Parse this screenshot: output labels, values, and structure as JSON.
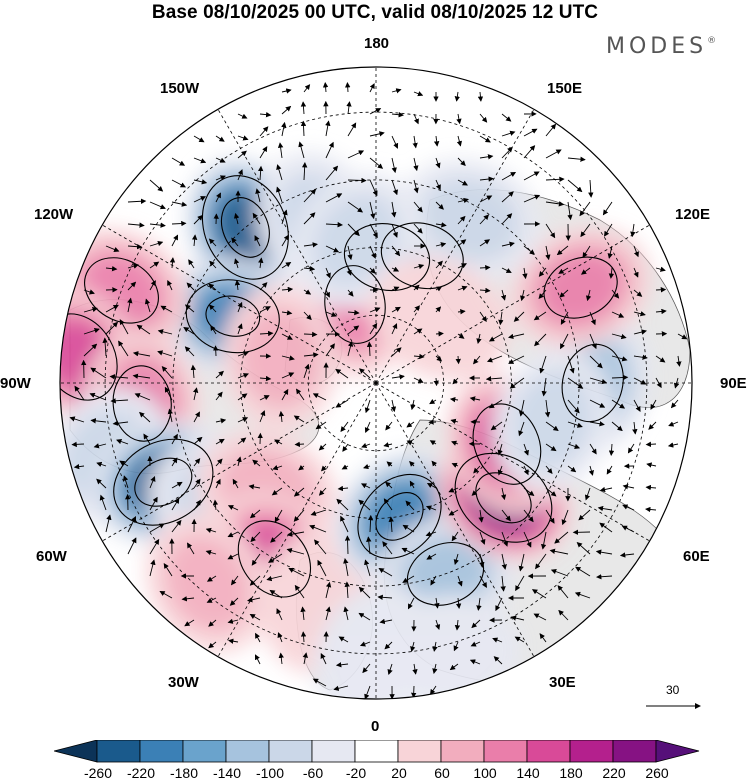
{
  "title": "Base 08/10/2025 00 UTC, valid 08/10/2025 12 UTC",
  "brand": {
    "name": "MODES",
    "mark": "®"
  },
  "longitude_labels": {
    "top": "180",
    "top_left": "150W",
    "top_right": "150E",
    "upper_left": "120W",
    "upper_right": "120E",
    "left": "90W",
    "right": "90E",
    "lower_left": "60W",
    "lower_right": "60E",
    "bottom_left": "30W",
    "bottom_right": "30E",
    "bottom": "0"
  },
  "wind_scale": {
    "label": "30"
  },
  "colorbar": {
    "ticks": [
      "-260",
      "-220",
      "-180",
      "-140",
      "-100",
      "-60",
      "-20",
      "20",
      "60",
      "100",
      "140",
      "180",
      "220",
      "260"
    ],
    "colors": [
      "#0c3358",
      "#1a5a8c",
      "#3b80b6",
      "#6aa3cc",
      "#a6c3de",
      "#cbd7e8",
      "#e6e8f2",
      "#ffffff",
      "#f8d4d8",
      "#f2adbe",
      "#ea7eaa",
      "#d94a98",
      "#b4208d",
      "#861283",
      "#561079"
    ]
  },
  "colors": {
    "land": "#e8e8e8",
    "coast": "#555555",
    "grid": "#000000"
  },
  "anomalies": [
    {
      "lon": -140,
      "lat": 45,
      "v": -230
    },
    {
      "lon": -160,
      "lat": 52,
      "v": -80
    },
    {
      "lon": -165,
      "lat": 72,
      "v": 120
    },
    {
      "lon": 175,
      "lat": 62,
      "v": 150
    },
    {
      "lon": 160,
      "lat": 60,
      "v": -140
    },
    {
      "lon": -172,
      "lat": 58,
      "v": -60
    },
    {
      "lon": -115,
      "lat": 55,
      "v": -180
    },
    {
      "lon": -110,
      "lat": 30,
      "v": 120
    },
    {
      "lon": -95,
      "lat": 24,
      "v": 170
    },
    {
      "lon": -85,
      "lat": 38,
      "v": 110
    },
    {
      "lon": -105,
      "lat": 68,
      "v": 60
    },
    {
      "lon": -75,
      "lat": 28,
      "v": -80
    },
    {
      "lon": -65,
      "lat": 38,
      "v": -220
    },
    {
      "lon": -55,
      "lat": 48,
      "v": -60
    },
    {
      "lon": -45,
      "lat": 56,
      "v": 70
    },
    {
      "lon": -30,
      "lat": 45,
      "v": 140
    },
    {
      "lon": -40,
      "lat": 32,
      "v": 60
    },
    {
      "lon": -15,
      "lat": 40,
      "v": 50
    },
    {
      "lon": 10,
      "lat": 60,
      "v": -180
    },
    {
      "lon": 20,
      "lat": 45,
      "v": -120
    },
    {
      "lon": 15,
      "lat": 28,
      "v": -40
    },
    {
      "lon": 48,
      "lat": 52,
      "v": 220
    },
    {
      "lon": 65,
      "lat": 58,
      "v": 140
    },
    {
      "lon": 90,
      "lat": 42,
      "v": -120
    },
    {
      "lon": 78,
      "lat": 50,
      "v": -90
    },
    {
      "lon": 115,
      "lat": 40,
      "v": 110
    },
    {
      "lon": 150,
      "lat": 48,
      "v": -60
    },
    {
      "lon": 135,
      "lat": 70,
      "v": 50
    },
    {
      "lon": 0,
      "lat": 30,
      "v": -40
    }
  ]
}
